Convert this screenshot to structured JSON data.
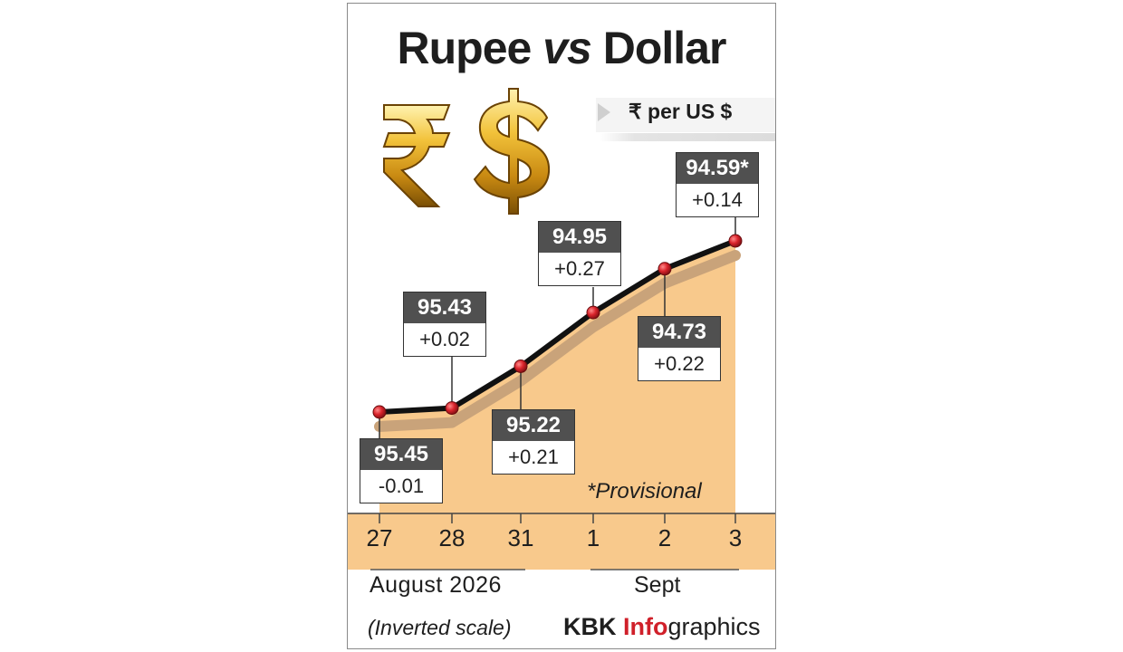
{
  "title_part1": "Rupee ",
  "title_part2": "vs",
  "title_part3": " Dollar",
  "unit_label": "₹ per US $",
  "month_label_august": "August  2026",
  "month_label_sept": "Sept",
  "scale_note": "(Inverted scale)",
  "provisional_note": "*Provisional",
  "credit": {
    "brand": "KBK ",
    "info": "Info",
    "graphics": "graphics"
  },
  "icons": [
    "rupee-symbol-icon",
    "dollar-symbol-icon"
  ],
  "colors": {
    "area_fill": "#f8c98c",
    "line": "#111111",
    "marker": "#d9232b",
    "value_box": "#505050",
    "credit_accent": "#d0202a"
  },
  "chart_data": {
    "type": "line",
    "x": [
      "27",
      "28",
      "31",
      "1",
      "2",
      "3"
    ],
    "values": [
      95.45,
      95.43,
      95.22,
      94.95,
      94.73,
      94.59
    ],
    "value_labels": [
      "95.45",
      "95.43",
      "95.22",
      "94.95",
      "94.73",
      "94.59*"
    ],
    "changes": [
      "-0.01",
      "+0.02",
      "+0.21",
      "+0.27",
      "+0.22",
      "+0.14"
    ],
    "y_inverted": true,
    "ylim": [
      95.55,
      94.5
    ],
    "grid": false
  }
}
